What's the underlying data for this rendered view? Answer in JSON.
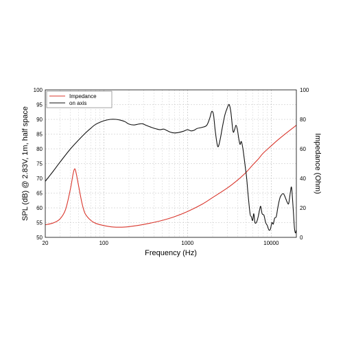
{
  "chart_data": {
    "type": "line",
    "title": "",
    "xlabel": "Frequency (Hz)",
    "ylabel_left": "SPL (dB) @ 2.83V, 1m, half space",
    "ylabel_right": "Impedance (Ohm)",
    "x_scale": "log",
    "xlim": [
      20,
      20000
    ],
    "ylim_left": [
      50,
      100
    ],
    "ylim_right": [
      0,
      100
    ],
    "grid": true,
    "legend_position": "top-left",
    "x_tick_labels": [
      "20",
      "100",
      "1000",
      "10000"
    ],
    "y_left_tick_labels": [
      "50",
      "55",
      "60",
      "65",
      "70",
      "75",
      "80",
      "85",
      "90",
      "95",
      "100"
    ],
    "y_right_tick_labels": [
      "0",
      "20",
      "40",
      "60",
      "80",
      "100"
    ],
    "series": [
      {
        "name": "Impedance",
        "color": "#d9352b",
        "axis": "right",
        "points": [
          [
            20,
            8.5
          ],
          [
            25,
            9.8
          ],
          [
            30,
            12.5
          ],
          [
            35,
            19
          ],
          [
            40,
            33
          ],
          [
            43,
            43
          ],
          [
            45,
            46.5
          ],
          [
            47,
            43
          ],
          [
            50,
            35
          ],
          [
            55,
            23
          ],
          [
            60,
            16
          ],
          [
            70,
            11.5
          ],
          [
            80,
            9.5
          ],
          [
            100,
            8
          ],
          [
            130,
            7
          ],
          [
            180,
            7
          ],
          [
            250,
            8
          ],
          [
            350,
            9.5
          ],
          [
            500,
            11.5
          ],
          [
            700,
            14
          ],
          [
            1000,
            17.5
          ],
          [
            1500,
            22.5
          ],
          [
            2000,
            27
          ],
          [
            3000,
            33.5
          ],
          [
            4000,
            39
          ],
          [
            5000,
            44
          ],
          [
            6000,
            49
          ],
          [
            7000,
            53
          ],
          [
            8000,
            57
          ],
          [
            10000,
            62
          ],
          [
            12000,
            66
          ],
          [
            15000,
            70.5
          ],
          [
            18000,
            74
          ],
          [
            20000,
            76
          ]
        ]
      },
      {
        "name": "on axis",
        "color": "#111111",
        "axis": "left",
        "points": [
          [
            20,
            69
          ],
          [
            25,
            72.5
          ],
          [
            30,
            75.5
          ],
          [
            40,
            80
          ],
          [
            50,
            83
          ],
          [
            60,
            85.3
          ],
          [
            70,
            87
          ],
          [
            80,
            88.3
          ],
          [
            100,
            89.5
          ],
          [
            120,
            90
          ],
          [
            140,
            90
          ],
          [
            160,
            89.7
          ],
          [
            180,
            89.2
          ],
          [
            200,
            88.4
          ],
          [
            230,
            88.1
          ],
          [
            260,
            88.4
          ],
          [
            290,
            88.5
          ],
          [
            320,
            88
          ],
          [
            370,
            87.3
          ],
          [
            420,
            86.8
          ],
          [
            470,
            86.5
          ],
          [
            520,
            86.7
          ],
          [
            560,
            86.3
          ],
          [
            620,
            85.7
          ],
          [
            700,
            85.4
          ],
          [
            800,
            85.6
          ],
          [
            900,
            86
          ],
          [
            1000,
            86.5
          ],
          [
            1100,
            86.1
          ],
          [
            1200,
            86.3
          ],
          [
            1300,
            86.9
          ],
          [
            1500,
            87.3
          ],
          [
            1700,
            88
          ],
          [
            1850,
            90.5
          ],
          [
            1950,
            92.7
          ],
          [
            2050,
            91.5
          ],
          [
            2150,
            86
          ],
          [
            2300,
            80.8
          ],
          [
            2450,
            83
          ],
          [
            2600,
            87
          ],
          [
            2800,
            91.5
          ],
          [
            3000,
            94
          ],
          [
            3150,
            95
          ],
          [
            3300,
            92.5
          ],
          [
            3500,
            86
          ],
          [
            3650,
            86.5
          ],
          [
            3800,
            88
          ],
          [
            3950,
            86.5
          ],
          [
            4100,
            83.5
          ],
          [
            4250,
            81.5
          ],
          [
            4400,
            82.5
          ],
          [
            4600,
            80
          ],
          [
            4900,
            74
          ],
          [
            5100,
            70
          ],
          [
            5300,
            64.5
          ],
          [
            5600,
            58
          ],
          [
            5800,
            57
          ],
          [
            6000,
            55.7
          ],
          [
            6200,
            58
          ],
          [
            6400,
            55
          ],
          [
            6700,
            55.2
          ],
          [
            7000,
            57
          ],
          [
            7300,
            59.5
          ],
          [
            7500,
            60.5
          ],
          [
            7800,
            58
          ],
          [
            8200,
            57.5
          ],
          [
            8600,
            55
          ],
          [
            9000,
            54
          ],
          [
            9400,
            52.5
          ],
          [
            9800,
            52.8
          ],
          [
            10200,
            55
          ],
          [
            10600,
            54.5
          ],
          [
            11000,
            56.5
          ],
          [
            11500,
            57
          ],
          [
            12000,
            60
          ],
          [
            12500,
            62.5
          ],
          [
            13000,
            64
          ],
          [
            14000,
            64.8
          ],
          [
            15000,
            63
          ],
          [
            15500,
            62
          ],
          [
            16200,
            61.5
          ],
          [
            17000,
            65.5
          ],
          [
            17500,
            67
          ],
          [
            18000,
            63
          ],
          [
            18500,
            58
          ],
          [
            19000,
            53
          ],
          [
            19500,
            51.5
          ],
          [
            20000,
            52.5
          ]
        ]
      }
    ]
  }
}
